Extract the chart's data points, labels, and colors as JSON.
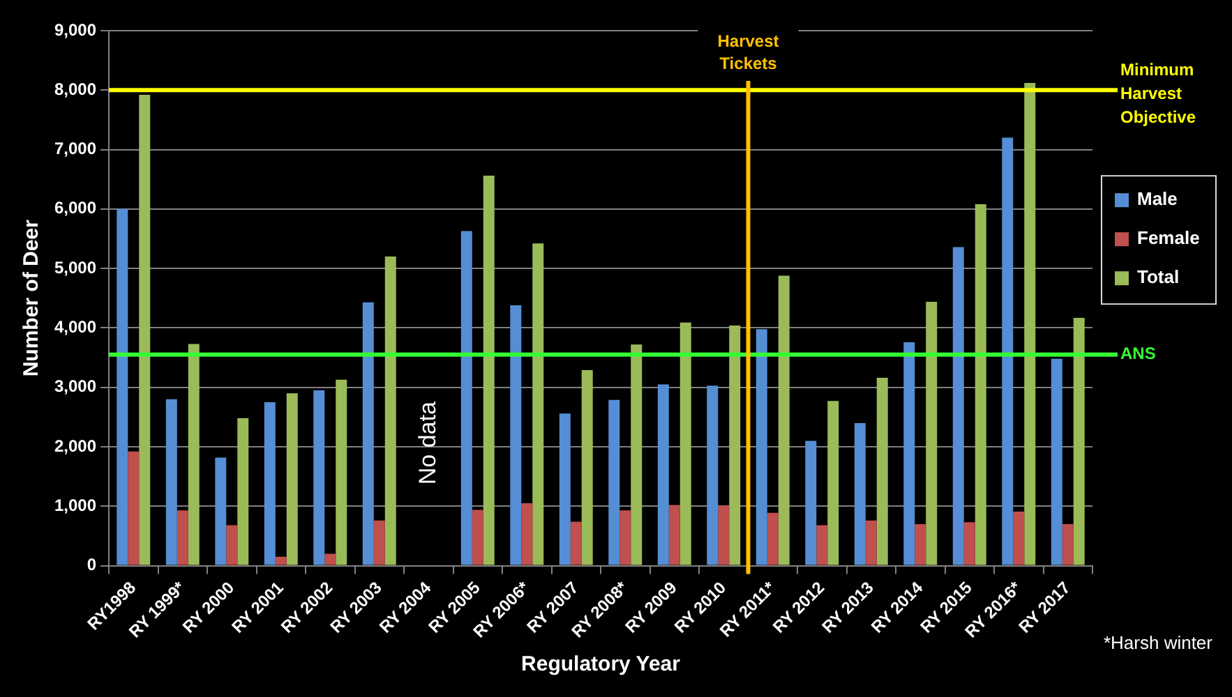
{
  "chart_data": {
    "type": "bar",
    "xlabel": "Regulatory Year",
    "ylabel": "Number of Deer",
    "categories": [
      "RY1998",
      "RY 1999*",
      "RY 2000",
      "RY 2001",
      "RY 2002",
      "RY 2003",
      "RY 2004",
      "RY 2005",
      "RY 2006*",
      "RY 2007",
      "RY 2008*",
      "RY 2009",
      "RY 2010",
      "RY 2011*",
      "RY 2012",
      "RY 2013",
      "RY 2014",
      "RY 2015",
      "RY 2016*",
      "RY 2017"
    ],
    "series": [
      {
        "name": "Male",
        "color": "#558ed5",
        "values": [
          6000,
          2800,
          1820,
          2750,
          2950,
          4430,
          null,
          5630,
          4380,
          2560,
          2790,
          3050,
          3030,
          3980,
          2100,
          2400,
          3760,
          5360,
          7200,
          3480
        ]
      },
      {
        "name": "Female",
        "color": "#c0504d",
        "values": [
          1920,
          930,
          680,
          150,
          200,
          760,
          null,
          940,
          1050,
          740,
          930,
          1020,
          1010,
          890,
          680,
          760,
          700,
          730,
          910,
          700
        ]
      },
      {
        "name": "Total",
        "color": "#9bbb59",
        "values": [
          7920,
          3730,
          2480,
          2900,
          3130,
          5200,
          null,
          6560,
          5420,
          3290,
          3720,
          4090,
          4040,
          4880,
          2770,
          3160,
          4440,
          6080,
          8120,
          4170
        ]
      }
    ],
    "ylim": [
      0,
      9000
    ],
    "yticks": [
      {
        "value": 0,
        "label": "0"
      },
      {
        "value": 1000,
        "label": "1,000"
      },
      {
        "value": 2000,
        "label": "2,000"
      },
      {
        "value": 3000,
        "label": "3,000"
      },
      {
        "value": 4000,
        "label": "4,000"
      },
      {
        "value": 5000,
        "label": "5,000"
      },
      {
        "value": 6000,
        "label": "6,000"
      },
      {
        "value": 7000,
        "label": "7,000"
      },
      {
        "value": 8000,
        "label": "8,000"
      },
      {
        "value": 9000,
        "label": "9,000"
      }
    ],
    "grid": "y",
    "legend": "right",
    "ref_lines": [
      {
        "axis": "y",
        "value": 8000,
        "label": "Minimum Harvest Objective",
        "color": "#ffff00"
      },
      {
        "axis": "y",
        "value": 3550,
        "label": "ANS",
        "color": "#33ff33"
      },
      {
        "axis": "x",
        "value": "RY 2011*",
        "label": "Harvest Tickets",
        "color": "#ffc000"
      }
    ],
    "annotations": [
      "No data",
      "*Harsh winter"
    ]
  }
}
